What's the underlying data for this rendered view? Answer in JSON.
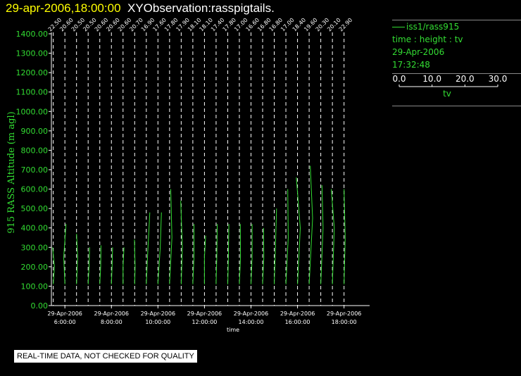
{
  "header": {
    "datetime": "29-apr-2006,18:00:00",
    "name": "XYObservation:rasspigtails."
  },
  "legend": {
    "series": "iss1/rass915",
    "fields": "time : height : tv",
    "date": "29-Apr-2006",
    "time": "17:32:48",
    "scale_ticks": [
      "0.0",
      "10.0",
      "20.0",
      "30.0"
    ],
    "scale_label": "tv"
  },
  "notice": "REAL-TIME DATA, NOT CHECKED FOR QUALITY",
  "colors": {
    "trace": "#33dd33",
    "axis": "#ffffff",
    "background": "#000000",
    "title_date": "#ffff00"
  },
  "chart_data": {
    "type": "line",
    "xlabel": "time",
    "ylabel": "915 RASS Altitude (m agl)",
    "ylim": [
      0,
      1400
    ],
    "xlim": [
      5.42,
      19.1
    ],
    "yticks": [
      "0.00",
      "100.00",
      "200.00",
      "300.00",
      "400.00",
      "500.00",
      "600.00",
      "700.00",
      "800.00",
      "900.00",
      "1000.00",
      "1100.00",
      "1200.00",
      "1300.00",
      "1400.00"
    ],
    "xticks": [
      {
        "date": "29-Apr-2006",
        "time": "6:00:00",
        "x": 6
      },
      {
        "date": "29-Apr-2006",
        "time": "8:00:00",
        "x": 8
      },
      {
        "date": "29-Apr-2006",
        "time": "10:00:00",
        "x": 10
      },
      {
        "date": "29-Apr-2006",
        "time": "12:00:00",
        "x": 12
      },
      {
        "date": "29-Apr-2006",
        "time": "14:00:00",
        "x": 14
      },
      {
        "date": "29-Apr-2006",
        "time": "16:00:00",
        "x": 16
      },
      {
        "date": "29-Apr-2006",
        "time": "18:00:00",
        "x": 18
      }
    ],
    "profiles": [
      {
        "time": 5.5,
        "label": "22.50",
        "height": [
          110,
          200,
          300
        ],
        "offset": [
          0.0,
          0.05,
          -0.03
        ]
      },
      {
        "time": 6.0,
        "label": "20.60",
        "height": [
          110,
          250,
          420
        ],
        "offset": [
          0.0,
          -0.05,
          0.05
        ]
      },
      {
        "time": 6.5,
        "label": "20.50",
        "height": [
          110,
          250,
          370
        ],
        "offset": [
          0.0,
          0.05,
          0.0
        ]
      },
      {
        "time": 7.0,
        "label": "20.50",
        "height": [
          110,
          200,
          300
        ],
        "offset": [
          0.0,
          0.04,
          0.06
        ]
      },
      {
        "time": 7.5,
        "label": "20.60",
        "height": [
          110,
          200,
          310
        ],
        "offset": [
          0.0,
          0.04,
          0.05
        ]
      },
      {
        "time": 8.0,
        "label": "20.60",
        "height": [
          110,
          200,
          300
        ],
        "offset": [
          0.0,
          0.03,
          0.05
        ]
      },
      {
        "time": 8.5,
        "label": "20.60",
        "height": [
          110,
          200,
          300
        ],
        "offset": [
          0.0,
          0.0,
          0.04
        ]
      },
      {
        "time": 9.0,
        "label": "20.70",
        "height": [
          110,
          200,
          340
        ],
        "offset": [
          0.0,
          0.02,
          -0.01
        ]
      },
      {
        "time": 9.5,
        "label": "16.90",
        "height": [
          110,
          250,
          480
        ],
        "offset": [
          0.0,
          0.05,
          0.15
        ]
      },
      {
        "time": 10.0,
        "label": "17.60",
        "height": [
          110,
          300,
          480
        ],
        "offset": [
          0.0,
          0.1,
          0.15
        ]
      },
      {
        "time": 10.5,
        "label": "17.80",
        "height": [
          110,
          350,
          600
        ],
        "offset": [
          0.0,
          0.1,
          0.05
        ]
      },
      {
        "time": 11.0,
        "label": "17.90",
        "height": [
          110,
          300,
          540
        ],
        "offset": [
          0.0,
          0.05,
          -0.02
        ]
      },
      {
        "time": 11.5,
        "label": "18.10",
        "height": [
          110,
          250,
          420
        ],
        "offset": [
          0.0,
          0.05,
          0.05
        ]
      },
      {
        "time": 12.0,
        "label": "18.10",
        "height": [
          110,
          250,
          360
        ],
        "offset": [
          0.0,
          0.0,
          0.05
        ]
      },
      {
        "time": 12.5,
        "label": "17.40",
        "height": [
          110,
          250,
          420
        ],
        "offset": [
          0.0,
          0.03,
          0.05
        ]
      },
      {
        "time": 13.0,
        "label": "17.80",
        "height": [
          110,
          250,
          420
        ],
        "offset": [
          0.0,
          0.03,
          0.05
        ]
      },
      {
        "time": 13.5,
        "label": "17.00",
        "height": [
          110,
          250,
          420
        ],
        "offset": [
          0.0,
          0.05,
          0.04
        ]
      },
      {
        "time": 14.0,
        "label": "16.60",
        "height": [
          110,
          250,
          420
        ],
        "offset": [
          0.0,
          0.05,
          0.05
        ]
      },
      {
        "time": 14.5,
        "label": "16.80",
        "height": [
          110,
          250,
          400
        ],
        "offset": [
          0.0,
          0.05,
          0.04
        ]
      },
      {
        "time": 15.0,
        "label": "16.80",
        "height": [
          110,
          300,
          500
        ],
        "offset": [
          0.0,
          0.05,
          0.1
        ]
      },
      {
        "time": 15.5,
        "label": "17.00",
        "height": [
          110,
          350,
          600
        ],
        "offset": [
          0.0,
          0.1,
          0.08
        ]
      },
      {
        "time": 16.0,
        "label": "18.40",
        "height": [
          110,
          400,
          660
        ],
        "offset": [
          0.0,
          0.12,
          -0.05
        ]
      },
      {
        "time": 16.5,
        "label": "19.60",
        "height": [
          110,
          450,
          720
        ],
        "offset": [
          0.0,
          0.15,
          0.05
        ]
      },
      {
        "time": 17.0,
        "label": "20.30",
        "height": [
          110,
          400,
          620
        ],
        "offset": [
          0.0,
          0.1,
          0.05
        ]
      },
      {
        "time": 17.5,
        "label": "20.10",
        "height": [
          110,
          400,
          600
        ],
        "offset": [
          0.0,
          0.08,
          -0.05
        ]
      },
      {
        "time": 18.0,
        "label": "22.90",
        "height": [
          110,
          350,
          600
        ],
        "offset": [
          0.0,
          0.05,
          0.0
        ]
      }
    ]
  }
}
